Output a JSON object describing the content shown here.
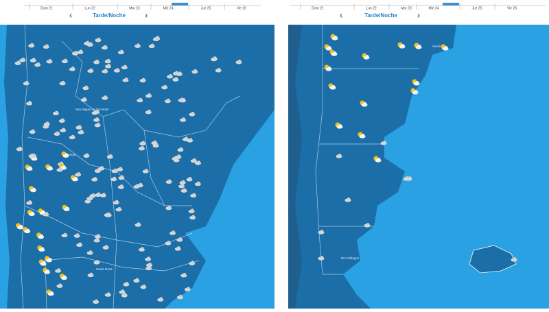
{
  "panels": [
    {
      "days": [
        "Dom 21",
        "Lun 22",
        "Mar 23",
        "Mie 24",
        "Jue 25",
        "Vie 26"
      ],
      "period": "Tarde/Noche",
      "prev": "‹",
      "next": "›",
      "places": [
        "San Miguel de Tucumán",
        "Rioja",
        "Santa Rosa"
      ]
    },
    {
      "days": [
        "Dom 21",
        "Lun 22",
        "Mar 23",
        "Mie 24",
        "Jue 25",
        "Vie 26"
      ],
      "period": "Tarde/Noche",
      "prev": "‹",
      "next": "›",
      "places": [
        "Viedma",
        "Río Gallegos"
      ]
    }
  ]
}
